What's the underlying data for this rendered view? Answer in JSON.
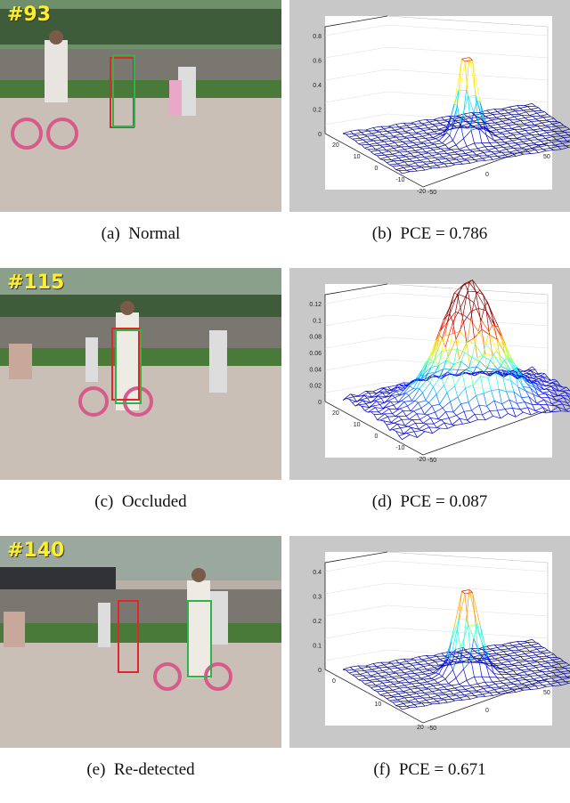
{
  "panels": [
    {
      "frame_label": "#93",
      "photo_caption": "(a)  Normal",
      "plot_caption": "(b)  PCE = 0.786",
      "pce": 0.786,
      "z_ticks": [
        "0",
        "0.2",
        "0.4",
        "0.6",
        "0.8"
      ],
      "y_ticks": [
        "20",
        "10",
        "0",
        "-10",
        "-20"
      ],
      "x_ticks": [
        "-50",
        "0",
        "50"
      ]
    },
    {
      "frame_label": "#115",
      "photo_caption": "(c)  Occluded",
      "plot_caption": "(d)  PCE = 0.087",
      "pce": 0.087,
      "z_ticks": [
        "0",
        "0.02",
        "0.04",
        "0.06",
        "0.08",
        "0.1",
        "0.12"
      ],
      "y_ticks": [
        "20",
        "10",
        "0",
        "-10",
        "-20"
      ],
      "x_ticks": [
        "-50"
      ]
    },
    {
      "frame_label": "#140",
      "photo_caption": "(e)  Re-detected",
      "plot_caption": "(f)  PCE = 0.671",
      "pce": 0.671,
      "z_ticks": [
        "0",
        "0.1",
        "0.2",
        "0.3",
        "0.4"
      ],
      "y_ticks": [
        "0",
        "10",
        "20"
      ],
      "x_ticks": [
        "-50",
        "0",
        "50"
      ]
    }
  ],
  "colors": {
    "ground_truth_box": "#e0262a",
    "tracker_box": "#2fb34a",
    "label_yellow": "#ffef2a"
  }
}
